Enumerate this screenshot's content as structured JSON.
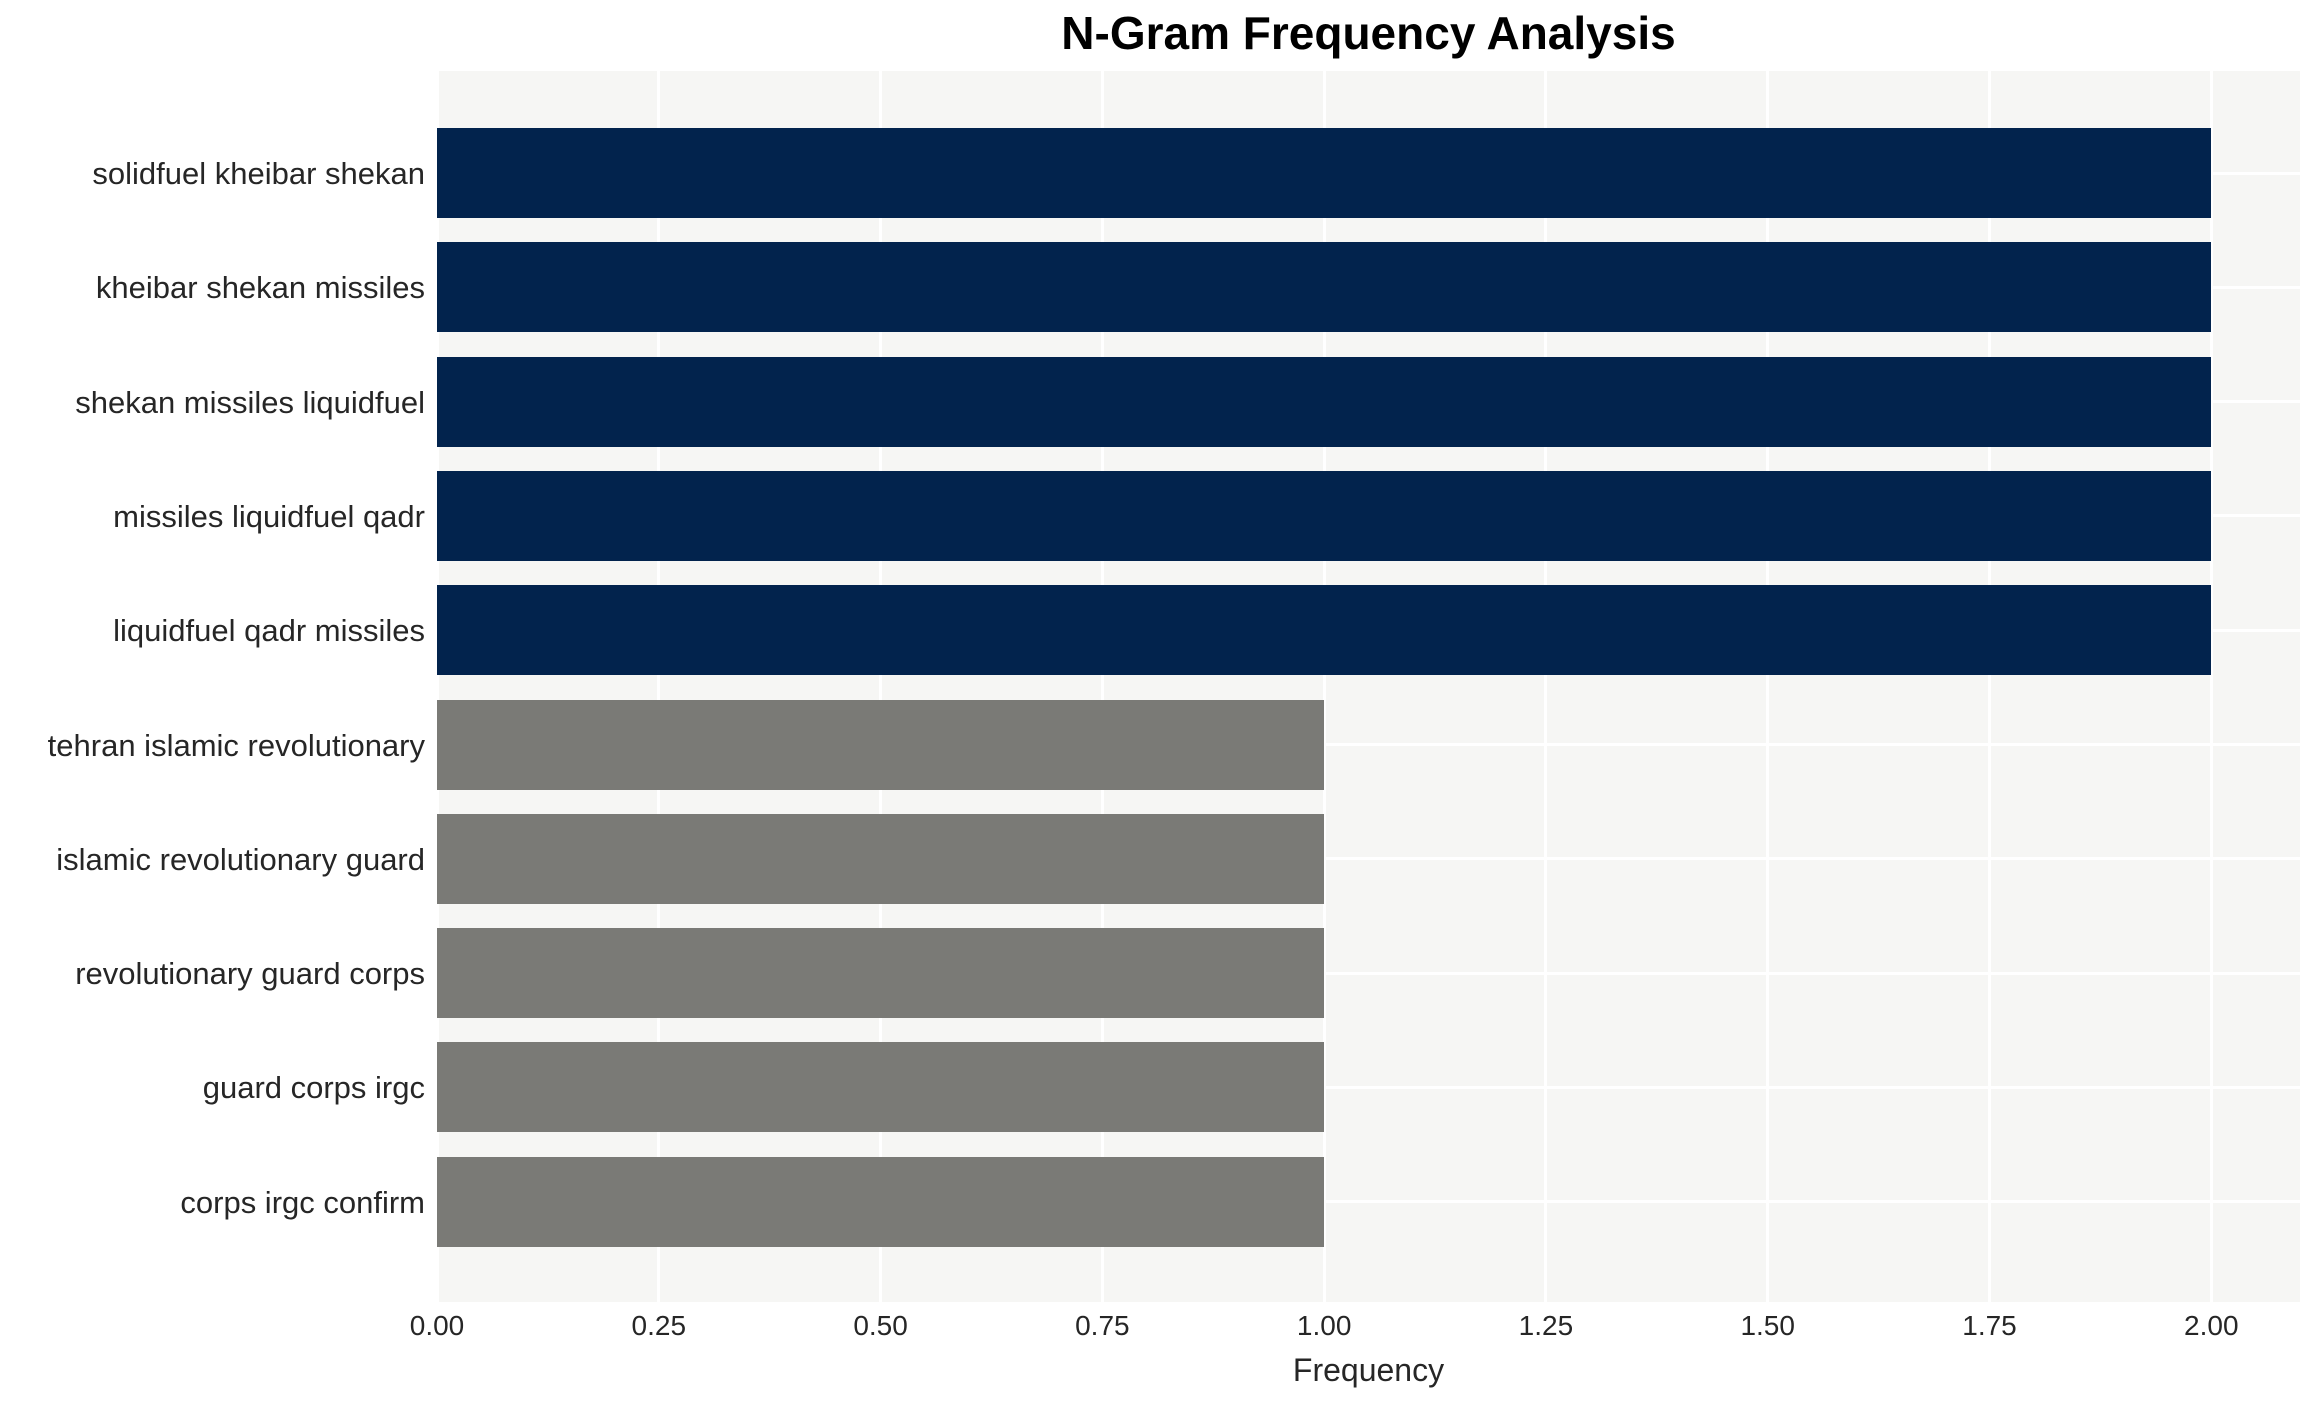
{
  "title": "N-Gram Frequency Analysis",
  "x_axis_label": "Frequency",
  "colors": {
    "high_bar": "#02234d",
    "low_bar": "#7a7a76",
    "plot_background": "#f6f6f4",
    "gridline": "#ffffff",
    "text": "#262626",
    "title_text": "#000000"
  },
  "chart_data": {
    "type": "bar",
    "orientation": "horizontal",
    "title": "N-Gram Frequency Analysis",
    "xlabel": "Frequency",
    "ylabel": "",
    "categories": [
      "solidfuel kheibar shekan",
      "kheibar shekan missiles",
      "shekan missiles liquidfuel",
      "missiles liquidfuel qadr",
      "liquidfuel qadr missiles",
      "tehran islamic revolutionary",
      "islamic revolutionary guard",
      "revolutionary guard corps",
      "guard corps irgc",
      "corps irgc confirm"
    ],
    "values": [
      2,
      2,
      2,
      2,
      2,
      1,
      1,
      1,
      1,
      1
    ],
    "bar_colors": [
      "#02234d",
      "#02234d",
      "#02234d",
      "#02234d",
      "#02234d",
      "#7a7a76",
      "#7a7a76",
      "#7a7a76",
      "#7a7a76",
      "#7a7a76"
    ],
    "x_ticks": [
      0.0,
      0.25,
      0.5,
      0.75,
      1.0,
      1.25,
      1.5,
      1.75,
      2.0
    ],
    "x_tick_labels": [
      "0.00",
      "0.25",
      "0.50",
      "0.75",
      "1.00",
      "1.25",
      "1.50",
      "1.75",
      "2.00"
    ],
    "xlim": [
      0,
      2.1
    ],
    "grid": true,
    "legend": false
  }
}
